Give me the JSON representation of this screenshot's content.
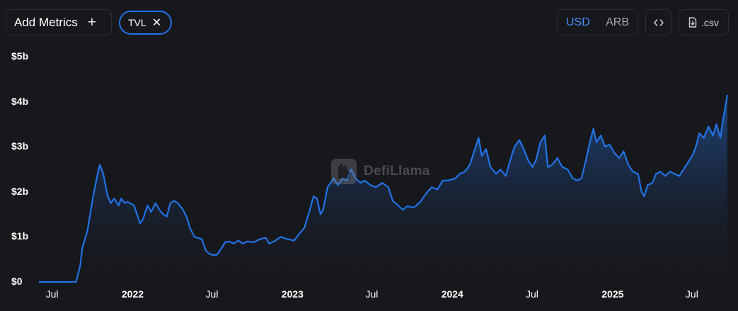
{
  "toolbar": {
    "add_metrics_label": "Add Metrics",
    "metric_chip_label": "TVL",
    "currency_options": [
      "USD",
      "ARB"
    ],
    "currency_selected": "USD",
    "embed_icon": "code-icon",
    "csv_label": ".csv",
    "csv_icon": "file-download-icon"
  },
  "watermark": {
    "text": "DefiLlama"
  },
  "colors": {
    "background": "#17181c",
    "line": "#2172e5",
    "area_top": "#1f4f95",
    "area_bottom": "#17181c",
    "accent_selected": "#4c8dff"
  },
  "chart_data": {
    "type": "area",
    "title": "",
    "xlabel": "",
    "ylabel": "",
    "ylim": [
      0,
      5000000000
    ],
    "y_ticks": [
      {
        "label": "$5b",
        "value": 5000000000
      },
      {
        "label": "$4b",
        "value": 4000000000
      },
      {
        "label": "$3b",
        "value": 3000000000
      },
      {
        "label": "$2b",
        "value": 2000000000
      },
      {
        "label": "$1b",
        "value": 1000000000
      },
      {
        "label": "$0",
        "value": 0
      }
    ],
    "x_range": [
      "2021-06-01",
      "2025-09-20"
    ],
    "x_ticks": [
      {
        "label": "Jul",
        "date": "2021-07-01",
        "year": false
      },
      {
        "label": "2022",
        "date": "2022-01-01",
        "year": true
      },
      {
        "label": "Jul",
        "date": "2022-07-01",
        "year": false
      },
      {
        "label": "2023",
        "date": "2023-01-01",
        "year": true
      },
      {
        "label": "Jul",
        "date": "2023-07-01",
        "year": false
      },
      {
        "label": "2024",
        "date": "2024-01-01",
        "year": true
      },
      {
        "label": "Jul",
        "date": "2024-07-01",
        "year": false
      },
      {
        "label": "2025",
        "date": "2025-01-01",
        "year": true
      },
      {
        "label": "Jul",
        "date": "2025-07-01",
        "year": false
      }
    ],
    "grid": false,
    "legend": "none",
    "series": [
      {
        "values_unit": "USD billions",
        "points": [
          [
            "2021-06-01",
            0
          ],
          [
            "2021-08-25",
            0
          ],
          [
            "2021-09-03",
            0.35
          ],
          [
            "2021-09-08",
            0.75
          ],
          [
            "2021-09-20",
            1.15
          ],
          [
            "2021-10-02",
            1.85
          ],
          [
            "2021-10-12",
            2.35
          ],
          [
            "2021-10-18",
            2.6
          ],
          [
            "2021-10-26",
            2.4
          ],
          [
            "2021-11-05",
            1.9
          ],
          [
            "2021-11-12",
            1.75
          ],
          [
            "2021-11-20",
            1.85
          ],
          [
            "2021-11-30",
            1.7
          ],
          [
            "2021-12-06",
            1.85
          ],
          [
            "2021-12-14",
            1.75
          ],
          [
            "2021-12-20",
            1.78
          ],
          [
            "2022-01-04",
            1.7
          ],
          [
            "2022-01-18",
            1.3
          ],
          [
            "2022-01-25",
            1.4
          ],
          [
            "2022-02-04",
            1.7
          ],
          [
            "2022-02-12",
            1.55
          ],
          [
            "2022-02-22",
            1.75
          ],
          [
            "2022-03-03",
            1.6
          ],
          [
            "2022-03-12",
            1.5
          ],
          [
            "2022-03-20",
            1.45
          ],
          [
            "2022-03-28",
            1.75
          ],
          [
            "2022-04-06",
            1.8
          ],
          [
            "2022-04-14",
            1.75
          ],
          [
            "2022-04-26",
            1.6
          ],
          [
            "2022-05-04",
            1.45
          ],
          [
            "2022-05-12",
            1.2
          ],
          [
            "2022-05-22",
            1.0
          ],
          [
            "2022-06-08",
            0.95
          ],
          [
            "2022-06-17",
            0.7
          ],
          [
            "2022-06-24",
            0.63
          ],
          [
            "2022-07-02",
            0.6
          ],
          [
            "2022-07-12",
            0.6
          ],
          [
            "2022-07-20",
            0.7
          ],
          [
            "2022-07-31",
            0.88
          ],
          [
            "2022-08-10",
            0.9
          ],
          [
            "2022-08-20",
            0.85
          ],
          [
            "2022-08-30",
            0.92
          ],
          [
            "2022-09-10",
            0.85
          ],
          [
            "2022-09-20",
            0.9
          ],
          [
            "2022-10-05",
            0.88
          ],
          [
            "2022-10-18",
            0.95
          ],
          [
            "2022-11-01",
            0.98
          ],
          [
            "2022-11-09",
            0.85
          ],
          [
            "2022-11-20",
            0.9
          ],
          [
            "2022-12-05",
            1.0
          ],
          [
            "2022-12-20",
            0.95
          ],
          [
            "2023-01-05",
            0.92
          ],
          [
            "2023-01-15",
            1.05
          ],
          [
            "2023-01-28",
            1.2
          ],
          [
            "2023-02-08",
            1.55
          ],
          [
            "2023-02-18",
            1.9
          ],
          [
            "2023-02-26",
            1.85
          ],
          [
            "2023-03-06",
            1.5
          ],
          [
            "2023-03-12",
            1.6
          ],
          [
            "2023-03-22",
            2.1
          ],
          [
            "2023-04-05",
            2.3
          ],
          [
            "2023-04-15",
            2.15
          ],
          [
            "2023-04-25",
            2.3
          ],
          [
            "2023-05-05",
            2.25
          ],
          [
            "2023-05-15",
            2.5
          ],
          [
            "2023-05-25",
            2.3
          ],
          [
            "2023-06-05",
            2.2
          ],
          [
            "2023-06-15",
            2.25
          ],
          [
            "2023-06-28",
            2.15
          ],
          [
            "2023-07-10",
            2.1
          ],
          [
            "2023-07-25",
            2.2
          ],
          [
            "2023-08-08",
            2.1
          ],
          [
            "2023-08-18",
            1.8
          ],
          [
            "2023-08-30",
            1.7
          ],
          [
            "2023-09-10",
            1.6
          ],
          [
            "2023-09-20",
            1.68
          ],
          [
            "2023-10-05",
            1.65
          ],
          [
            "2023-10-20",
            1.78
          ],
          [
            "2023-11-05",
            2.0
          ],
          [
            "2023-11-15",
            2.1
          ],
          [
            "2023-11-28",
            2.05
          ],
          [
            "2023-12-10",
            2.25
          ],
          [
            "2023-12-22",
            2.25
          ],
          [
            "2024-01-08",
            2.3
          ],
          [
            "2024-01-18",
            2.4
          ],
          [
            "2024-01-30",
            2.45
          ],
          [
            "2024-02-10",
            2.6
          ],
          [
            "2024-02-20",
            2.9
          ],
          [
            "2024-03-01",
            3.2
          ],
          [
            "2024-03-08",
            2.8
          ],
          [
            "2024-03-18",
            2.95
          ],
          [
            "2024-03-28",
            2.55
          ],
          [
            "2024-04-10",
            2.4
          ],
          [
            "2024-04-20",
            2.5
          ],
          [
            "2024-05-02",
            2.35
          ],
          [
            "2024-05-12",
            2.7
          ],
          [
            "2024-05-22",
            3.0
          ],
          [
            "2024-06-02",
            3.15
          ],
          [
            "2024-06-12",
            2.95
          ],
          [
            "2024-06-22",
            2.7
          ],
          [
            "2024-07-02",
            2.55
          ],
          [
            "2024-07-10",
            2.7
          ],
          [
            "2024-07-20",
            3.1
          ],
          [
            "2024-07-30",
            3.25
          ],
          [
            "2024-08-06",
            2.55
          ],
          [
            "2024-08-16",
            2.6
          ],
          [
            "2024-08-28",
            2.75
          ],
          [
            "2024-09-08",
            2.55
          ],
          [
            "2024-09-20",
            2.5
          ],
          [
            "2024-10-02",
            2.3
          ],
          [
            "2024-10-12",
            2.25
          ],
          [
            "2024-10-22",
            2.3
          ],
          [
            "2024-11-02",
            2.75
          ],
          [
            "2024-11-10",
            3.1
          ],
          [
            "2024-11-18",
            3.4
          ],
          [
            "2024-11-25",
            3.1
          ],
          [
            "2024-12-05",
            3.25
          ],
          [
            "2024-12-15",
            3.0
          ],
          [
            "2024-12-25",
            3.05
          ],
          [
            "2025-01-06",
            2.85
          ],
          [
            "2025-01-16",
            2.75
          ],
          [
            "2025-01-26",
            2.9
          ],
          [
            "2025-02-06",
            2.6
          ],
          [
            "2025-02-16",
            2.45
          ],
          [
            "2025-02-28",
            2.4
          ],
          [
            "2025-03-08",
            2.0
          ],
          [
            "2025-03-14",
            1.9
          ],
          [
            "2025-03-22",
            2.15
          ],
          [
            "2025-04-02",
            2.2
          ],
          [
            "2025-04-10",
            2.4
          ],
          [
            "2025-04-20",
            2.45
          ],
          [
            "2025-05-01",
            2.35
          ],
          [
            "2025-05-12",
            2.45
          ],
          [
            "2025-05-22",
            2.4
          ],
          [
            "2025-06-02",
            2.35
          ],
          [
            "2025-06-12",
            2.5
          ],
          [
            "2025-06-22",
            2.65
          ],
          [
            "2025-07-02",
            2.8
          ],
          [
            "2025-07-10",
            3.0
          ],
          [
            "2025-07-18",
            3.3
          ],
          [
            "2025-07-28",
            3.2
          ],
          [
            "2025-08-08",
            3.45
          ],
          [
            "2025-08-18",
            3.25
          ],
          [
            "2025-08-26",
            3.5
          ],
          [
            "2025-09-04",
            3.2
          ],
          [
            "2025-09-10",
            3.6
          ],
          [
            "2025-09-20",
            4.15
          ]
        ]
      }
    ]
  }
}
